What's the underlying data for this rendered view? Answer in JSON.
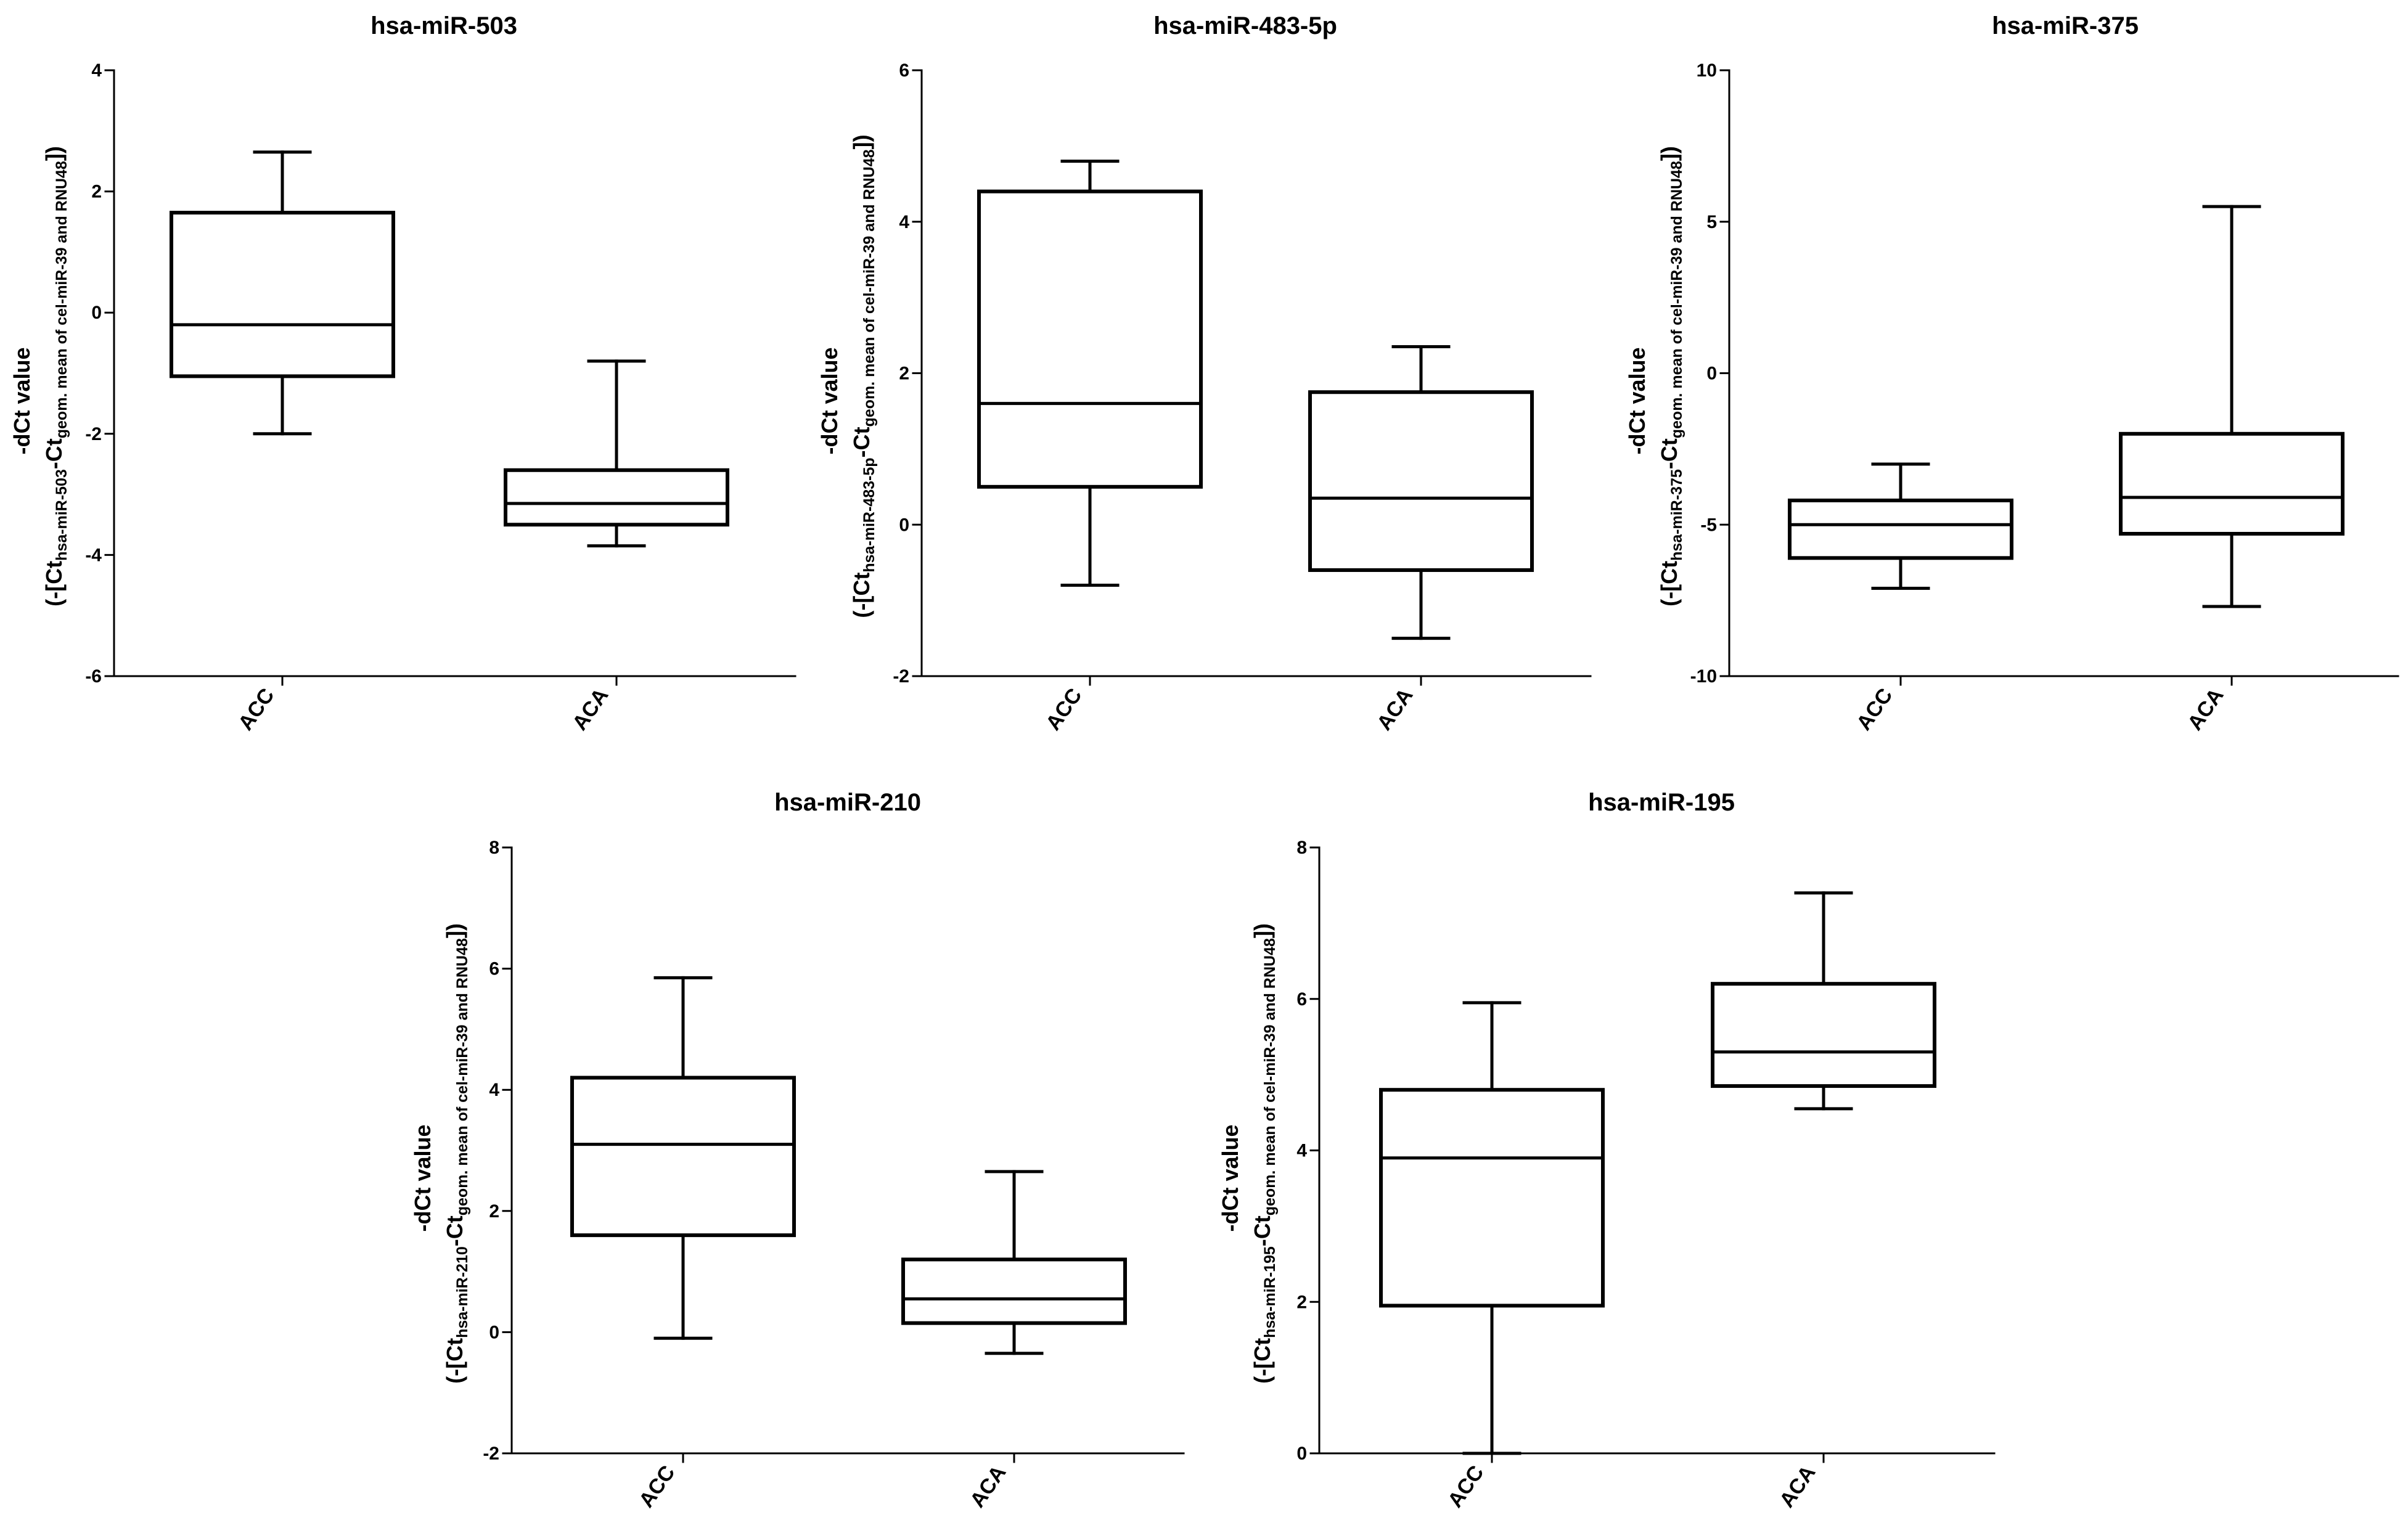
{
  "figure": {
    "ylabel_line1": "-dCt value",
    "ylabel_prefix": "(-[Ct",
    "ylabel_mid": "-Ct",
    "ylabel_sub2": "geom. mean of cel-miR-39 and RNU48",
    "ylabel_suffix": "])"
  },
  "chart_data": [
    {
      "type": "box",
      "title": "hsa-miR-503",
      "ylabel_sub1": "hsa-miR-503",
      "ylim": [
        -6,
        4
      ],
      "yticks": [
        "-6",
        "-4",
        "-2",
        "0",
        "2",
        "4"
      ],
      "categories": [
        "ACC",
        "ACA"
      ],
      "boxes": [
        {
          "name": "ACC",
          "min": -2.0,
          "q1": -1.05,
          "median": -0.2,
          "q3": 1.65,
          "max": 2.65
        },
        {
          "name": "ACA",
          "min": -3.85,
          "q1": -3.5,
          "median": -3.15,
          "q3": -2.6,
          "max": -0.8
        }
      ]
    },
    {
      "type": "box",
      "title": "hsa-miR-483-5p",
      "ylabel_sub1": "hsa-miR-483-5p",
      "ylim": [
        -2,
        6
      ],
      "yticks": [
        "-2",
        "0",
        "2",
        "4",
        "6"
      ],
      "categories": [
        "ACC",
        "ACA"
      ],
      "boxes": [
        {
          "name": "ACC",
          "min": -0.8,
          "q1": 0.5,
          "median": 1.6,
          "q3": 4.4,
          "max": 4.8
        },
        {
          "name": "ACA",
          "min": -1.5,
          "q1": -0.6,
          "median": 0.35,
          "q3": 1.75,
          "max": 2.35
        }
      ]
    },
    {
      "type": "box",
      "title": "hsa-miR-375",
      "ylabel_sub1": "hsa-miR-375",
      "ylim": [
        -10,
        10
      ],
      "yticks": [
        "-10",
        "-5",
        "0",
        "5",
        "10"
      ],
      "categories": [
        "ACC",
        "ACA"
      ],
      "boxes": [
        {
          "name": "ACC",
          "min": -7.1,
          "q1": -6.1,
          "median": -5.0,
          "q3": -4.2,
          "max": -3.0
        },
        {
          "name": "ACA",
          "min": -7.7,
          "q1": -5.3,
          "median": -4.1,
          "q3": -2.0,
          "max": 5.5
        }
      ]
    },
    {
      "type": "box",
      "title": "hsa-miR-210",
      "ylabel_sub1": "hsa-miR-210",
      "ylim": [
        -2,
        8
      ],
      "yticks": [
        "-2",
        "0",
        "2",
        "4",
        "6",
        "8"
      ],
      "categories": [
        "ACC",
        "ACA"
      ],
      "boxes": [
        {
          "name": "ACC",
          "min": -0.1,
          "q1": 1.6,
          "median": 3.1,
          "q3": 4.2,
          "max": 5.85
        },
        {
          "name": "ACA",
          "min": -0.35,
          "q1": 0.15,
          "median": 0.55,
          "q3": 1.2,
          "max": 2.65
        }
      ]
    },
    {
      "type": "box",
      "title": "hsa-miR-195",
      "ylabel_sub1": "hsa-miR-195",
      "ylim": [
        0,
        8
      ],
      "yticks": [
        "0",
        "2",
        "4",
        "6",
        "8"
      ],
      "categories": [
        "ACC",
        "ACA"
      ],
      "boxes": [
        {
          "name": "ACC",
          "min": 0.0,
          "q1": 1.95,
          "median": 3.9,
          "q3": 4.8,
          "max": 5.95
        },
        {
          "name": "ACA",
          "min": 4.55,
          "q1": 4.85,
          "median": 5.3,
          "q3": 6.2,
          "max": 7.4
        }
      ]
    }
  ]
}
